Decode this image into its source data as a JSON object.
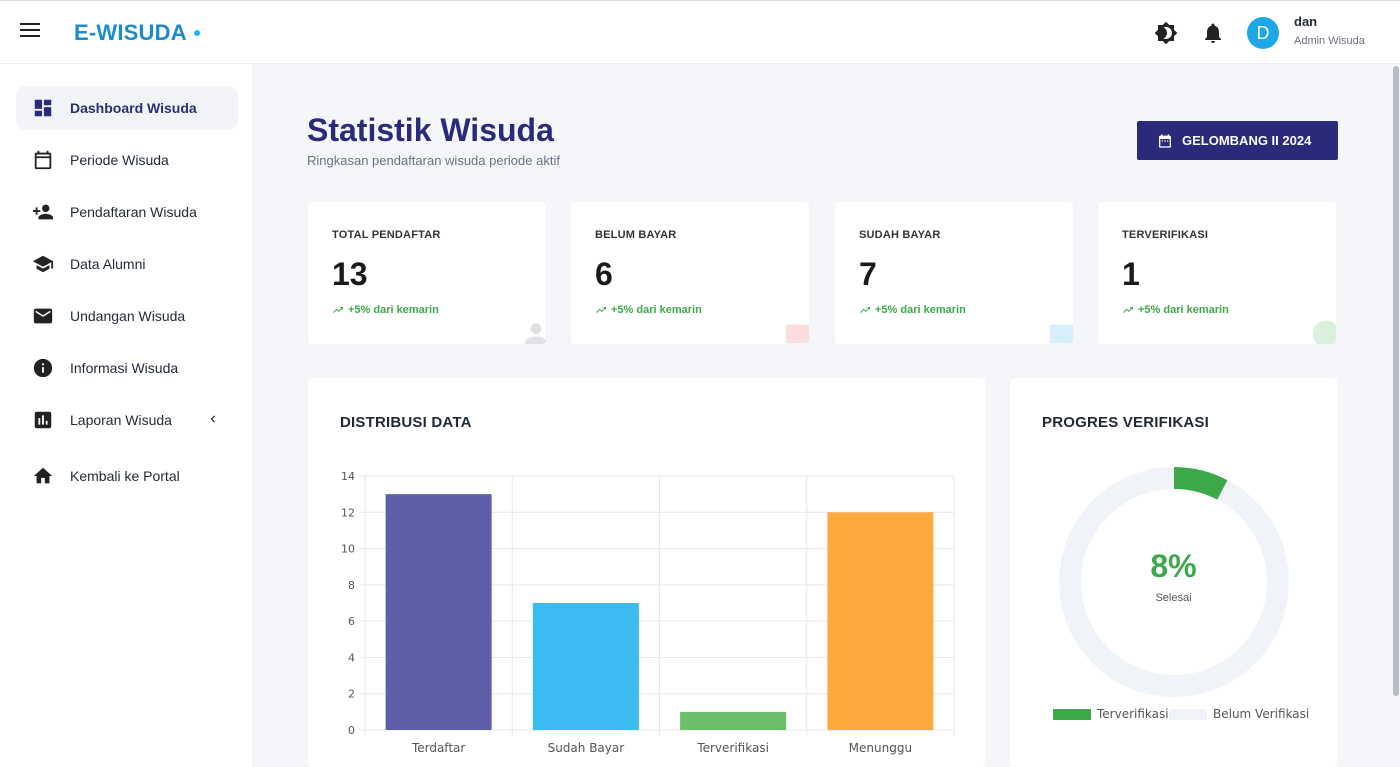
{
  "header": {
    "brand": "E-WISUDA",
    "user_initial": "D",
    "user_name": "dan",
    "user_role": "Admin Wisuda",
    "icons": [
      "menu-icon",
      "theme-icon",
      "bell-icon"
    ]
  },
  "sidebar": {
    "items": [
      {
        "label": "Dashboard Wisuda",
        "icon": "dashboard-icon",
        "active": true
      },
      {
        "label": "Periode Wisuda",
        "icon": "calendar-icon"
      },
      {
        "label": "Pendaftaran Wisuda",
        "icon": "person-add-icon"
      },
      {
        "label": "Data Alumni",
        "icon": "graduation-cap-icon"
      },
      {
        "label": "Undangan Wisuda",
        "icon": "mail-icon"
      },
      {
        "label": "Informasi Wisuda",
        "icon": "info-icon"
      },
      {
        "label": "Laporan Wisuda",
        "icon": "report-icon",
        "has_submenu": true
      },
      {
        "label": "Kembali ke Portal",
        "icon": "home-icon"
      }
    ]
  },
  "main": {
    "title": "Statistik Wisuda",
    "subtitle": "Ringkasan pendaftaran wisuda periode aktif",
    "period_button": "GELOMBANG II 2024",
    "stats": [
      {
        "label": "TOTAL PENDAFTAR",
        "value": "13",
        "trend": "+5% dari kemarin",
        "deco_color": "#4b5563"
      },
      {
        "label": "BELUM BAYAR",
        "value": "6",
        "trend": "+5% dari kemarin",
        "deco_color": "#ef4444"
      },
      {
        "label": "SUDAH BAYAR",
        "value": "7",
        "trend": "+5% dari kemarin",
        "deco_color": "#1ea7e6"
      },
      {
        "label": "TERVERIFIKASI",
        "value": "1",
        "trend": "+5% dari kemarin",
        "deco_color": "#3ea94a"
      }
    ],
    "distribution": {
      "title": "DISTRIBUSI DATA"
    },
    "progress": {
      "title": "PROGRES VERIFIKASI",
      "percent_label": "8%",
      "caption": "Selesai"
    }
  },
  "colors": {
    "primary": "#2a2a7a",
    "brand": "#1f8ac9",
    "success": "#3ea94a"
  },
  "chart_data": [
    {
      "type": "bar",
      "title": "DISTRIBUSI DATA",
      "categories": [
        "Terdaftar",
        "Sudah Bayar",
        "Terverifikasi",
        "Menunggu"
      ],
      "values": [
        13,
        7,
        1,
        12
      ],
      "colors": [
        "#5e5fa9",
        "#3bbcf0",
        "#6ebd6b",
        "#fdaa3d"
      ],
      "ylim": [
        0,
        14
      ],
      "yticks": [
        0,
        2,
        4,
        6,
        8,
        10,
        12,
        14
      ],
      "grid": true,
      "xlabel": "",
      "ylabel": ""
    },
    {
      "type": "pie",
      "title": "PROGRES VERIFIKASI",
      "variant": "doughnut",
      "labels": [
        "Terverifikasi",
        "Belum Verifikasi"
      ],
      "values": [
        1,
        12
      ],
      "colors": [
        "#3ea94a",
        "#f0f3f7"
      ],
      "legend": "bottom"
    }
  ]
}
